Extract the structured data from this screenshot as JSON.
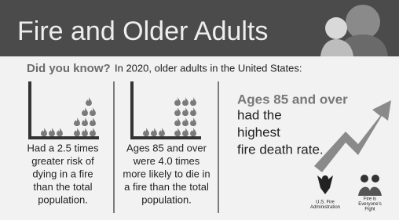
{
  "header": {
    "title": "Fire and Older Adults"
  },
  "intro": {
    "lead": "Did you know?",
    "text": "In 2020, older adults in the United States:"
  },
  "panels": [
    {
      "lines": [
        "Had a 2.5 times",
        "greater risk of",
        "dying in a fire",
        "than the total",
        "population."
      ]
    },
    {
      "lines": [
        "Ages 85 and over",
        "were 4.0 times",
        "more likely to die in",
        "a fire than the total",
        "population."
      ]
    }
  ],
  "highlight": {
    "lead": "Ages 85 and over",
    "lines": [
      "had the",
      "highest",
      "fire death rate."
    ]
  },
  "logos": [
    {
      "lines": [
        "U.S. Fire",
        "Administration"
      ]
    },
    {
      "lines": [
        "Fire is",
        "Everyone's",
        "Fight"
      ]
    }
  ]
}
